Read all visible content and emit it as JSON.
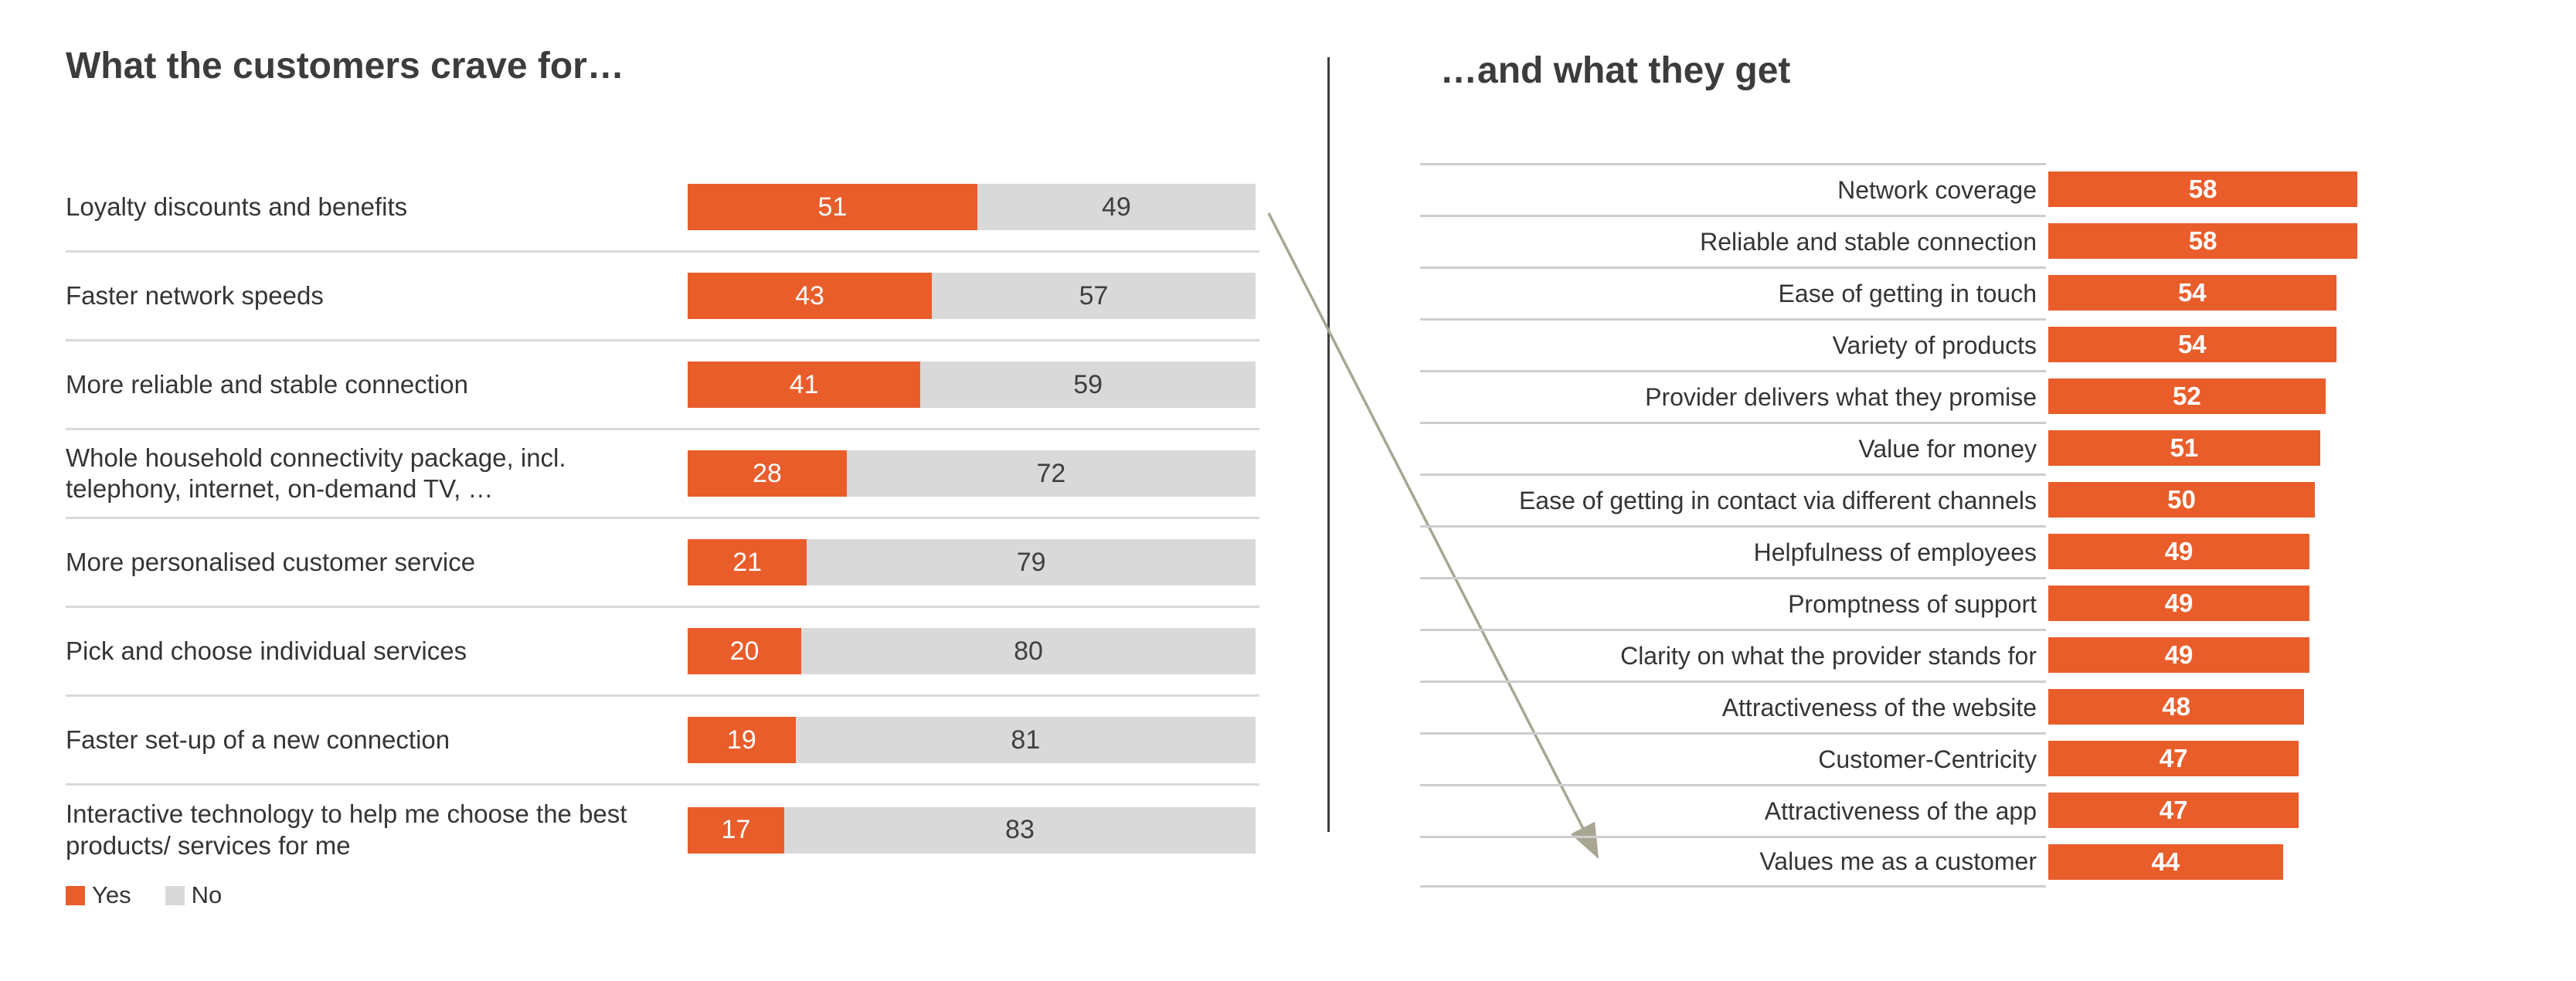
{
  "colors": {
    "accent_orange": "#E95D2B",
    "bar_gray": "#D9D9D9",
    "row_separator": "#D9D9D9",
    "gridline": "#CDCDCD",
    "divider_line": "#3E3E3E",
    "arrow": "#A8A693",
    "text_dark": "#3C3C3C"
  },
  "annotations": {
    "arrow": {
      "description": "diagonal arrow from the 'Loyalty discounts and benefits' bar in the left chart to the 'Values me as a customer' row in the right chart",
      "color": "#A8A693"
    },
    "divider": "vertical line separating the two charts"
  },
  "chart_data": [
    {
      "type": "bar",
      "orientation": "horizontal",
      "stacked": true,
      "title": "What the customers crave for…",
      "categories": [
        "Loyalty discounts and benefits",
        "Faster network speeds",
        "More reliable and stable connection",
        "Whole household connectivity package, incl. telephony, internet, on-demand TV, …",
        "More personalised customer service",
        "Pick and choose individual services",
        "Faster set-up of a new connection",
        "Interactive technology to help me choose the best products/ services for me"
      ],
      "series": [
        {
          "name": "Yes",
          "color": "#E95D2B",
          "values": [
            51,
            43,
            41,
            28,
            21,
            20,
            19,
            17
          ]
        },
        {
          "name": "No",
          "color": "#D9D9D9",
          "values": [
            49,
            57,
            59,
            72,
            79,
            80,
            81,
            83
          ]
        }
      ],
      "value_range": [
        0,
        100
      ],
      "legend_position": "bottom-left",
      "grid": "horizontal row separators",
      "data_labels": "inside segments"
    },
    {
      "type": "bar",
      "orientation": "horizontal",
      "stacked": false,
      "title": "…and what they get",
      "categories": [
        "Network coverage",
        "Reliable and stable connection",
        "Ease of getting in touch",
        "Variety of products",
        "Provider delivers what they promise",
        "Value for money",
        "Ease of getting in contact via different channels",
        "Helpfulness of employees",
        "Promptness of support",
        "Clarity on what the provider stands for",
        "Attractiveness of the website",
        "Customer-Centricity",
        "Attractiveness of the app",
        "Values me as a customer"
      ],
      "values": [
        58,
        58,
        54,
        54,
        52,
        51,
        50,
        49,
        49,
        49,
        48,
        47,
        47,
        44
      ],
      "bar_color": "#E95D2B",
      "value_range": [
        0,
        60
      ],
      "grid": "horizontal row separators under label column",
      "data_labels": "inside bars, white bold"
    }
  ]
}
